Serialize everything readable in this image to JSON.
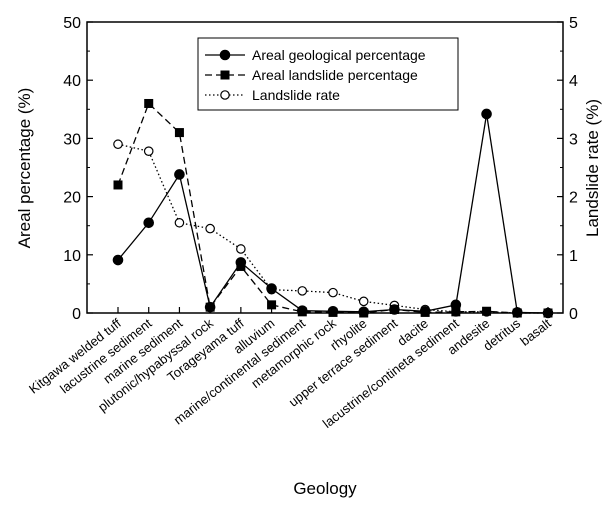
{
  "chart_data": {
    "type": "line",
    "categories": [
      "Kitgawa welded tuff",
      "lacustrine sediment",
      "marine sediment",
      "plutonic/hypabyssal rock",
      "Torageyama tuff",
      "alluvium",
      "marine/continental sediment",
      "metamorphic rock",
      "rhyolite",
      "upper terrace sediment",
      "dacite",
      "lacustrine/contineta sediment",
      "andesite",
      "detritus",
      "basalt"
    ],
    "series": [
      {
        "name": "Areal geological percentage",
        "axis": "left",
        "line_style": "solid",
        "marker": "filled-circle",
        "values": [
          9.1,
          15.5,
          23.8,
          1.0,
          8.7,
          4.2,
          0.4,
          0.3,
          0.2,
          0.6,
          0.3,
          1.4,
          34.2,
          0.1,
          0.0
        ]
      },
      {
        "name": "Areal landslide percentage",
        "axis": "left",
        "line_style": "dashed",
        "marker": "filled-square",
        "values": [
          22.0,
          36.0,
          31.0,
          1.0,
          8.0,
          1.4,
          0.2,
          0.1,
          0.0,
          0.6,
          0.1,
          0.2,
          0.3,
          0.0,
          0.0
        ]
      },
      {
        "name": "Landslide rate",
        "axis": "right",
        "line_style": "dotted",
        "marker": "open-circle",
        "values": [
          2.9,
          2.78,
          1.55,
          1.45,
          1.1,
          0.4,
          0.38,
          0.35,
          0.2,
          0.13,
          0.06,
          0.02,
          0.02,
          0.0,
          0.0
        ]
      }
    ],
    "xlabel": "Geology",
    "ylabel": "Areal percentage (%)",
    "y2label": "Landslide rate (%)",
    "ylim": [
      0,
      50
    ],
    "y2lim": [
      0,
      5
    ],
    "yticks": [
      "0",
      "10",
      "20",
      "30",
      "40",
      "50"
    ],
    "y2ticks": [
      "0",
      "1",
      "2",
      "3",
      "4",
      "5"
    ],
    "legend_position": "top-center",
    "grid": false
  }
}
